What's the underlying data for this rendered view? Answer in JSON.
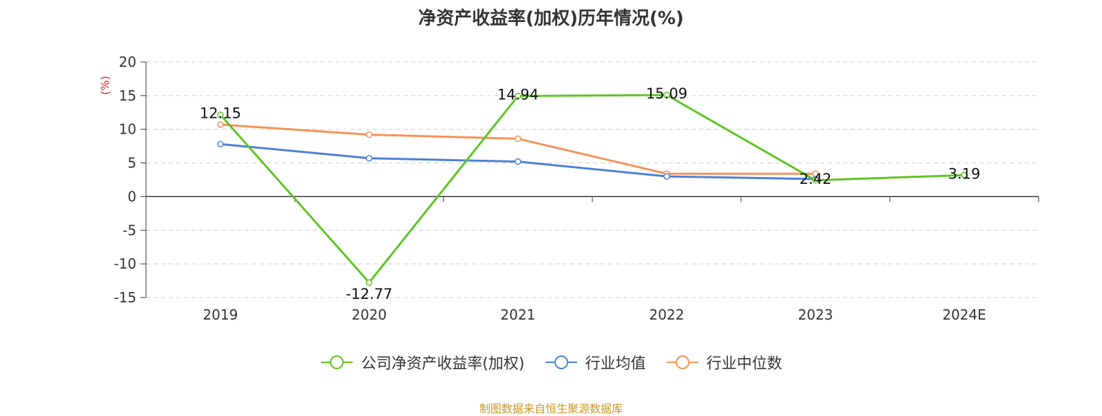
{
  "chart_data": {
    "type": "line",
    "title": "净资产收益率(加权)历年情况(%)",
    "ylabel": "(%)",
    "xlabel": "",
    "ylim": [
      -15,
      20
    ],
    "yticks": [
      -15,
      -10,
      -5,
      0,
      5,
      10,
      15,
      20
    ],
    "categories": [
      "2019",
      "2020",
      "2021",
      "2022",
      "2023",
      "2024E"
    ],
    "grid": true,
    "legend_position": "bottom",
    "series": [
      {
        "name": "公司净资产收益率(加权)",
        "color": "#5cc520",
        "values": [
          12.15,
          -12.77,
          14.94,
          15.09,
          2.42,
          3.19
        ],
        "labels": [
          "12.15",
          "-12.77",
          "14.94",
          "15.09",
          "2.42",
          "3.19"
        ]
      },
      {
        "name": "行业均值",
        "color": "#4a7fdb",
        "values": [
          7.8,
          5.7,
          5.2,
          3.0,
          2.6,
          null
        ]
      },
      {
        "name": "行业中位数",
        "color": "#f79052",
        "values": [
          10.7,
          9.2,
          8.6,
          3.4,
          3.4,
          null
        ]
      }
    ]
  },
  "footer": {
    "source": "制图数据来自恒生聚源数据库"
  }
}
